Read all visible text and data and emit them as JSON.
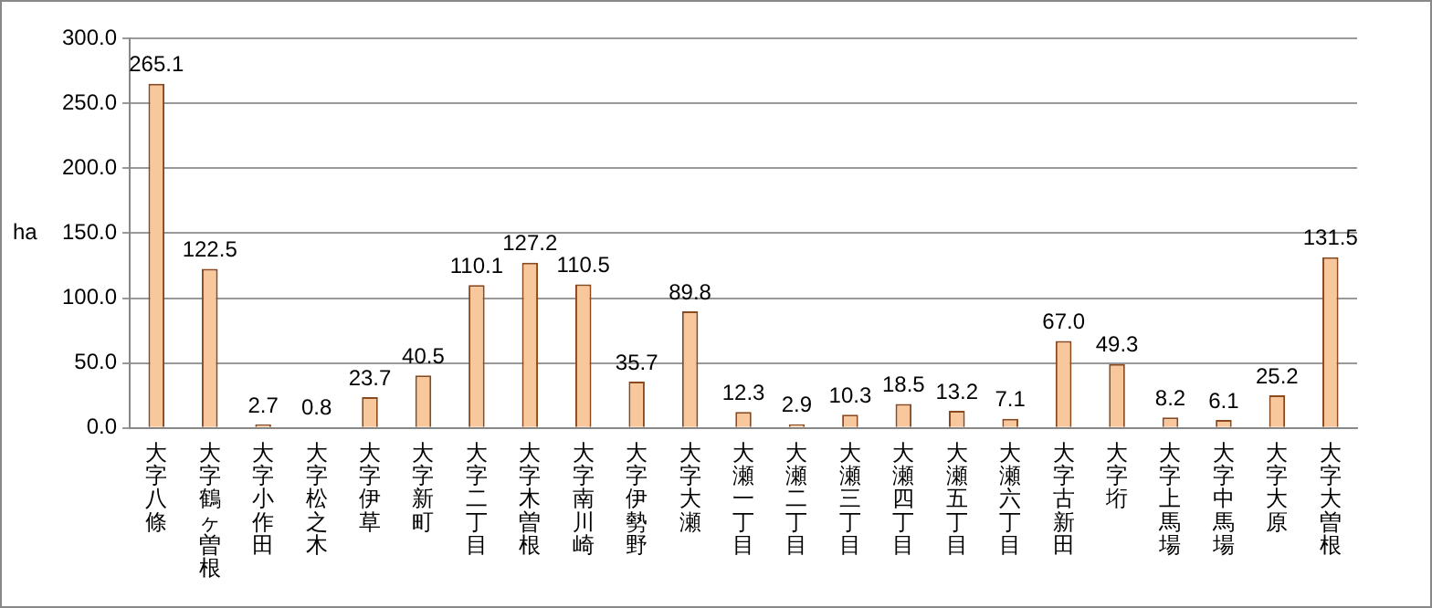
{
  "chart_data": {
    "type": "bar",
    "ylabel": "ha",
    "categories": [
      "大字八條",
      "大字鶴ヶ曽根",
      "大字小作田",
      "大字松之木",
      "大字伊草",
      "大字新町",
      "大字二丁目",
      "大字木曽根",
      "大字南川崎",
      "大字伊勢野",
      "大字大瀬",
      "大瀬一丁目",
      "大瀬二丁目",
      "大瀬三丁目",
      "大瀬四丁目",
      "大瀬五丁目",
      "大瀬六丁目",
      "大字古新田",
      "大字垳",
      "大字上馬場",
      "大字中馬場",
      "大字大原",
      "大字大曽根"
    ],
    "values": [
      265.1,
      122.5,
      2.7,
      0.8,
      23.7,
      40.5,
      110.1,
      127.2,
      110.5,
      35.7,
      89.8,
      12.3,
      2.9,
      10.3,
      18.5,
      13.2,
      7.1,
      67.0,
      49.3,
      8.2,
      6.1,
      25.2,
      131.5
    ],
    "value_labels": [
      "265.1",
      "122.5",
      "2.7",
      "0.8",
      "23.7",
      "40.5",
      "110.1",
      "127.2",
      "110.5",
      "35.7",
      "89.8",
      "12.3",
      "2.9",
      "10.3",
      "18.5",
      "13.2",
      "7.1",
      "67.0",
      "49.3",
      "8.2",
      "6.1",
      "25.2",
      "131.5"
    ],
    "color": "#f8c89c",
    "ylim": [
      0,
      300
    ],
    "yticks": [
      {
        "value": 0,
        "label": "0.0"
      },
      {
        "value": 50,
        "label": "50.0"
      },
      {
        "value": 100,
        "label": "100.0"
      },
      {
        "value": 150,
        "label": "150.0"
      },
      {
        "value": 200,
        "label": "200.0"
      },
      {
        "value": 250,
        "label": "250.0"
      },
      {
        "value": 300,
        "label": "300.0"
      }
    ],
    "grid": "y",
    "legend": false
  }
}
